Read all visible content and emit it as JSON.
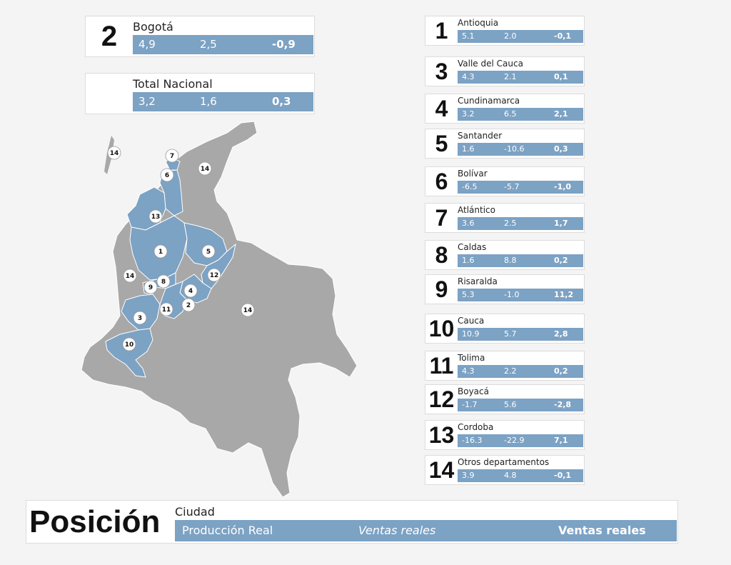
{
  "colors": {
    "accent": "#7ca2c4",
    "region_other": "#a8a8a8",
    "card_bg": "#ffffff"
  },
  "featured": [
    {
      "rank": "2",
      "name": "Bogotá",
      "v1": "4,9",
      "v2": "2,5",
      "v3": "-0,9"
    },
    {
      "rank": "",
      "name": "Total Nacional",
      "v1": "3,2",
      "v2": "1,6",
      "v3": "0,3"
    }
  ],
  "departments": [
    {
      "rank": "1",
      "name": "Antioquia",
      "v1": "5.1",
      "v2": "2.0",
      "v3": "-0,1"
    },
    {
      "rank": "3",
      "name": "Valle del Cauca",
      "v1": "4.3",
      "v2": "2.1",
      "v3": "0,1"
    },
    {
      "rank": "4",
      "name": "Cundinamarca",
      "v1": "3.2",
      "v2": "6.5",
      "v3": "2,1"
    },
    {
      "rank": "5",
      "name": "Santander",
      "v1": "1.6",
      "v2": "-10.6",
      "v3": "0,3"
    },
    {
      "rank": "6",
      "name": "Bolívar",
      "v1": "-6.5",
      "v2": "-5.7",
      "v3": "-1,0"
    },
    {
      "rank": "7",
      "name": "Atlántico",
      "v1": "3.6",
      "v2": "2.5",
      "v3": "1,7"
    },
    {
      "rank": "8",
      "name": "Caldas",
      "v1": "1.6",
      "v2": "8.8",
      "v3": "0,2"
    },
    {
      "rank": "9",
      "name": "Risaralda",
      "v1": "5.3",
      "v2": "-1.0",
      "v3": "11,2"
    },
    {
      "rank": "10",
      "name": "Cauca",
      "v1": "10.9",
      "v2": "5.7",
      "v3": "2,8"
    },
    {
      "rank": "11",
      "name": "Tolima",
      "v1": "4.3",
      "v2": "2.2",
      "v3": "0,2"
    },
    {
      "rank": "12",
      "name": "Boyacá",
      "v1": "-1.7",
      "v2": "5.6",
      "v3": "-2,8"
    },
    {
      "rank": "13",
      "name": "Cordoba",
      "v1": "-16.3",
      "v2": "-22.9",
      "v3": "7,1"
    },
    {
      "rank": "14",
      "name": "Otros departamentos",
      "v1": "3.9",
      "v2": "4.8",
      "v3": "-0,1"
    }
  ],
  "legend": {
    "title": "Posición",
    "name": "Ciudad",
    "l1": "Producción Real",
    "l2": "Ventas reales",
    "l3": "Ventas reales"
  },
  "map_markers": {
    "m1": "1",
    "m2": "2",
    "m3": "3",
    "m4": "4",
    "m5": "5",
    "m6": "6",
    "m7": "7",
    "m8": "8",
    "m9": "9",
    "m10": "10",
    "m11": "11",
    "m12": "12",
    "m13": "13",
    "m14a": "14",
    "m14b": "14",
    "m14c": "14",
    "m14d": "14"
  }
}
